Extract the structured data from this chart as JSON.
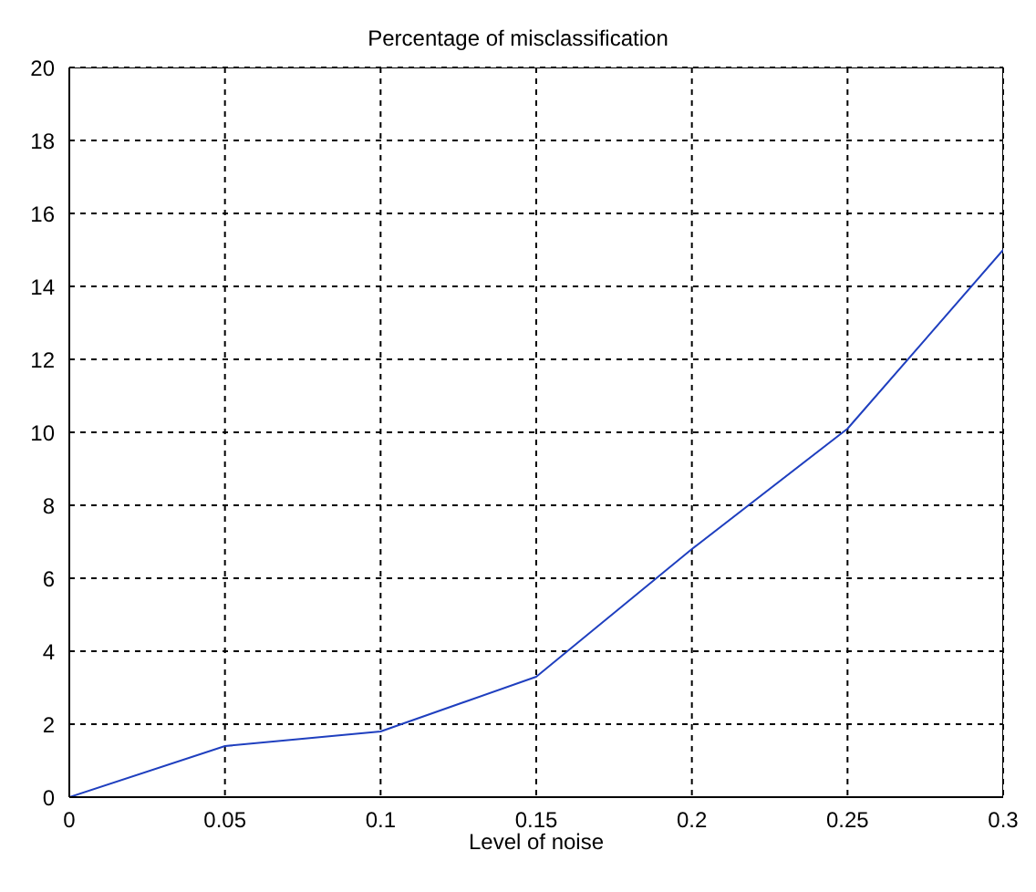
{
  "chart_data": {
    "type": "line",
    "title": "Percentage of misclassification",
    "xlabel": "Level of noise",
    "x": [
      0,
      0.05,
      0.1,
      0.15,
      0.2,
      0.25,
      0.3
    ],
    "series": [
      {
        "color": "#1f3fbf",
        "values": [
          0,
          1.4,
          1.8,
          3.3,
          6.8,
          10.1,
          15
        ]
      }
    ],
    "xlim": [
      0,
      0.3
    ],
    "xticks": [
      0,
      0.05,
      0.1,
      0.15,
      0.2,
      0.25,
      0.3
    ],
    "ylim": [
      0,
      20
    ],
    "yticks": [
      0,
      2,
      4,
      6,
      8,
      10,
      12,
      14,
      16,
      18,
      20
    ],
    "grid": true,
    "line_style": "solid",
    "marker": "none"
  }
}
